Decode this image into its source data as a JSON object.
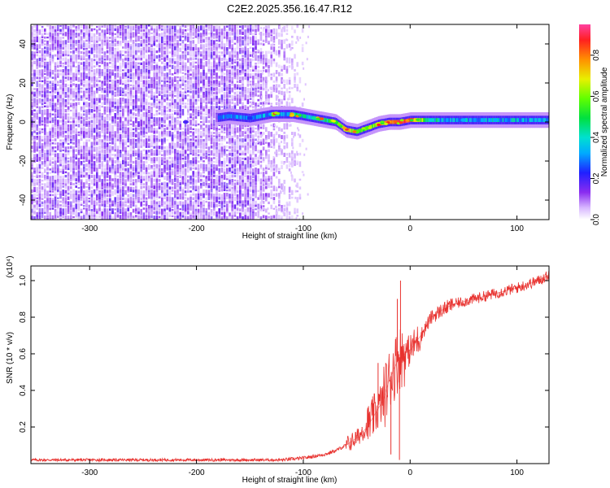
{
  "title": "C2E2.2025.356.16.47.R12",
  "chart_data": [
    {
      "type": "heatmap",
      "name": "spectrogram",
      "xlabel": "Height of straight line (km)",
      "ylabel": "Frequency (Hz)",
      "xlim": [
        -355,
        130
      ],
      "ylim": [
        -50,
        50
      ],
      "xticks": [
        -300,
        -200,
        -100,
        0,
        100
      ],
      "yticks": [
        -40,
        -20,
        0,
        20,
        40
      ],
      "noise_region": {
        "x_start": -355,
        "x_end": -100,
        "density_drop_start": -150
      },
      "signal_trace": {
        "x": [
          -210,
          -170,
          -150,
          -130,
          -110,
          -90,
          -70,
          -60,
          -50,
          -40,
          -30,
          -20,
          -10,
          0,
          20,
          50,
          80,
          130
        ],
        "y": [
          0,
          3,
          2,
          4,
          4,
          2,
          0,
          -4,
          -5,
          -3,
          -1,
          0,
          0,
          1,
          1,
          1,
          1,
          1
        ],
        "amplitude": [
          0.2,
          0.3,
          0.25,
          0.35,
          0.4,
          0.45,
          0.55,
          0.7,
          0.6,
          0.6,
          0.7,
          0.8,
          0.95,
          0.9,
          0.4,
          0.35,
          0.35,
          0.3
        ]
      },
      "colorbar": {
        "label": "Normalized spectral amplitude",
        "range": [
          0.0,
          0.95
        ],
        "ticks": [
          0.0,
          0.2,
          0.4,
          0.6,
          0.8
        ]
      }
    },
    {
      "type": "line",
      "name": "snr",
      "xlabel": "Height of straight line (km)",
      "ylabel": "SNR (10 * v/v)",
      "y_multiplier_label": "(x10⁴)",
      "xlim": [
        -355,
        130
      ],
      "ylim": [
        0.0,
        1.08
      ],
      "xticks": [
        -300,
        -200,
        -100,
        0,
        100
      ],
      "yticks": [
        0.2,
        0.4,
        0.6,
        0.8,
        1.0
      ],
      "color": "#e8322f",
      "series": {
        "name": "SNR",
        "x": [
          -355,
          -300,
          -250,
          -200,
          -150,
          -120,
          -100,
          -90,
          -80,
          -70,
          -60,
          -50,
          -40,
          -30,
          -25,
          -20,
          -15,
          -10,
          -5,
          0,
          10,
          20,
          30,
          40,
          60,
          80,
          100,
          120,
          130
        ],
        "y": [
          0.02,
          0.02,
          0.02,
          0.02,
          0.02,
          0.02,
          0.03,
          0.04,
          0.05,
          0.07,
          0.1,
          0.14,
          0.2,
          0.3,
          0.35,
          0.45,
          0.52,
          0.58,
          0.6,
          0.62,
          0.7,
          0.8,
          0.84,
          0.87,
          0.9,
          0.93,
          0.96,
          1.0,
          1.03
        ]
      },
      "spikes": [
        {
          "x": -9,
          "y": 1.0
        },
        {
          "x": -12,
          "y": 0.9
        },
        {
          "x": -30,
          "y": 0.55
        },
        {
          "x": -45,
          "y": 0.2
        },
        {
          "x": -10,
          "y": 0.02
        },
        {
          "x": -18,
          "y": 0.05
        }
      ]
    }
  ]
}
